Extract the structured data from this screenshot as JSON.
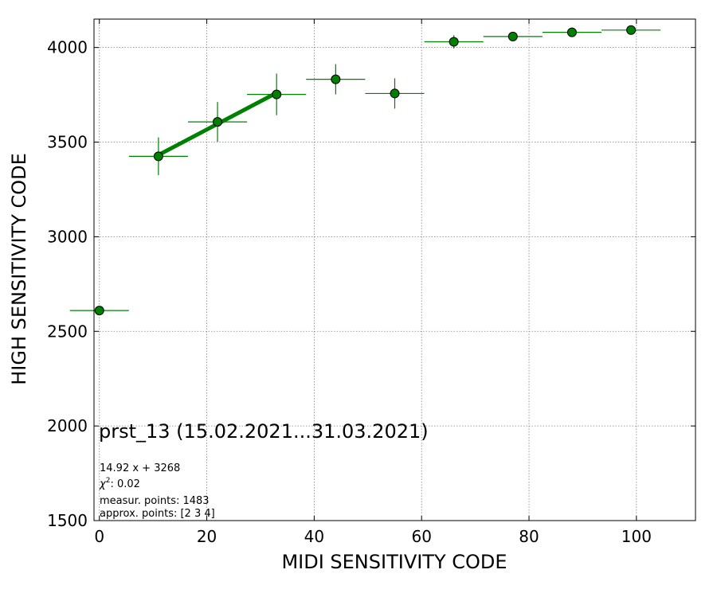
{
  "chart_data": {
    "type": "scatter",
    "title": "",
    "xlabel": "MIDI SENSITIVITY CODE",
    "ylabel": "HIGH SENSITIVITY CODE",
    "xlim": [
      -1,
      111
    ],
    "ylim": [
      1500,
      4150
    ],
    "xticks": [
      0,
      20,
      40,
      60,
      80,
      100
    ],
    "yticks": [
      1500,
      2000,
      2500,
      3000,
      3500,
      4000
    ],
    "grid": true,
    "colors": {
      "points": "#008000",
      "fit_line": "#008000",
      "grid": "#808080"
    },
    "series": [
      {
        "points": [
          {
            "x": 0,
            "y": 2610,
            "xerr": 5.5,
            "yerr": 0
          },
          {
            "x": 11,
            "y": 3425,
            "xerr": 5.5,
            "yerr": 100
          },
          {
            "x": 22,
            "y": 3607,
            "xerr": 5.5,
            "yerr": 105
          },
          {
            "x": 33,
            "y": 3752,
            "xerr": 5.5,
            "yerr": 110
          },
          {
            "x": 44,
            "y": 3832,
            "xerr": 5.5,
            "yerr": 80
          },
          {
            "x": 55,
            "y": 3757,
            "xerr": 5.5,
            "yerr": 80
          },
          {
            "x": 66,
            "y": 4030,
            "xerr": 5.5,
            "yerr": 35
          },
          {
            "x": 77,
            "y": 4058,
            "xerr": 5.5,
            "yerr": 15
          },
          {
            "x": 88,
            "y": 4080,
            "xerr": 5.5,
            "yerr": 10
          },
          {
            "x": 99,
            "y": 4092,
            "xerr": 5.5,
            "yerr": 10
          }
        ]
      }
    ],
    "fit_line": {
      "slope": 14.92,
      "intercept": 3268,
      "x_start": 11,
      "x_end": 33
    },
    "annotations": {
      "run_label": "prst_13 (15.02.2021...31.03.2021)",
      "fit_equation": "14.92 x + 3268",
      "chi_symbol": "χ",
      "chi_sup": "2",
      "chi_value": ": 0.02",
      "measur_points": "measur. points: 1483",
      "approx_points": "approx. points: [2 3 4]"
    }
  }
}
